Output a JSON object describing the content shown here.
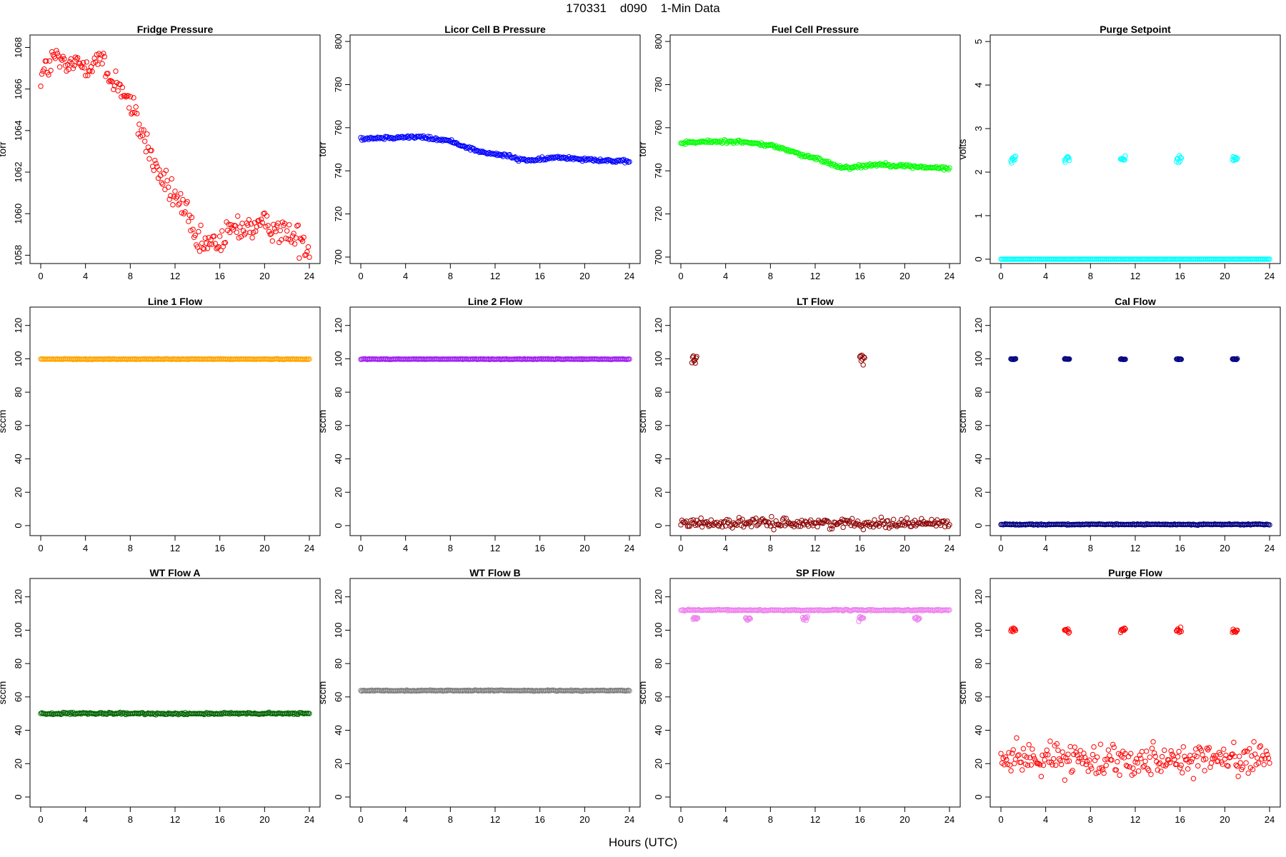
{
  "figure": {
    "title": "170331    d090    1-Min Data",
    "xlabel": "Hours (UTC)"
  },
  "chart_data": [
    {
      "type": "scatter",
      "title": "Fridge Pressure",
      "ylabel": "torr",
      "color": "#ff0000",
      "marker": "open-circle",
      "xlim": [
        0,
        24
      ],
      "xticks": [
        0,
        4,
        8,
        12,
        16,
        20,
        24
      ],
      "ylim": [
        1057.6,
        1068.6
      ],
      "yticks": [
        1058,
        1060,
        1062,
        1064,
        1066,
        1068
      ],
      "series": [
        {
          "kind": "trend",
          "noise": 0.35,
          "x": [
            0,
            0.5,
            1,
            1.5,
            2,
            3,
            4,
            5,
            5.5,
            6,
            7,
            8,
            9,
            10,
            10.5,
            11,
            12,
            13,
            13.5,
            14,
            15,
            16,
            17,
            18,
            19,
            20,
            21,
            22,
            23,
            24
          ],
          "y": [
            1066.6,
            1067.0,
            1067.3,
            1067.6,
            1067.0,
            1067.2,
            1067.2,
            1067.4,
            1067.4,
            1066.5,
            1066.3,
            1065.2,
            1064.0,
            1062.6,
            1062.0,
            1061.5,
            1060.8,
            1060.2,
            1059.0,
            1058.5,
            1058.5,
            1058.6,
            1059.2,
            1059.4,
            1059.3,
            1059.4,
            1059.4,
            1059.0,
            1058.8,
            1058.4
          ]
        }
      ]
    },
    {
      "type": "scatter",
      "title": "Licor Cell B Pressure",
      "ylabel": "torr",
      "color": "#0000ff",
      "marker": "open-circle",
      "xlim": [
        0,
        24
      ],
      "xticks": [
        0,
        4,
        8,
        12,
        16,
        20,
        24
      ],
      "ylim": [
        697,
        803
      ],
      "yticks": [
        700,
        720,
        740,
        760,
        780,
        800
      ],
      "series": [
        {
          "kind": "trend",
          "noise": 0.4,
          "x": [
            0,
            2,
            4,
            5.5,
            6,
            8,
            10,
            11,
            12,
            13,
            14,
            15,
            16,
            17,
            18,
            20,
            22,
            24
          ],
          "y": [
            755,
            755.4,
            755.7,
            755.6,
            755.2,
            753.8,
            750.0,
            748.4,
            747.6,
            747.2,
            745.4,
            745.0,
            745.0,
            746.0,
            746.2,
            745.5,
            744.8,
            744.0
          ]
        }
      ]
    },
    {
      "type": "scatter",
      "title": "Fuel Cell Pressure",
      "ylabel": "torr",
      "color": "#00ff00",
      "marker": "open-circle",
      "xlim": [
        0,
        24
      ],
      "xticks": [
        0,
        4,
        8,
        12,
        16,
        20,
        24
      ],
      "ylim": [
        697,
        803
      ],
      "yticks": [
        700,
        720,
        740,
        760,
        780,
        800
      ],
      "series": [
        {
          "kind": "trend",
          "noise": 0.4,
          "x": [
            0,
            2,
            4,
            5,
            6,
            8,
            10,
            11,
            12,
            13,
            14,
            15,
            16,
            17,
            18,
            20,
            22,
            24
          ],
          "y": [
            753.0,
            753.4,
            753.6,
            753.7,
            753.0,
            751.8,
            749.0,
            746.8,
            745.8,
            744.2,
            742.0,
            741.6,
            742.0,
            742.8,
            743.0,
            742.2,
            741.6,
            741.0
          ]
        }
      ]
    },
    {
      "type": "scatter",
      "title": "Purge Setpoint",
      "ylabel": "volts",
      "color": "#00ffff",
      "marker": "open-circle",
      "xlim": [
        0,
        24
      ],
      "xticks": [
        0,
        4,
        8,
        12,
        16,
        20,
        24
      ],
      "ylim": [
        -0.1,
        5.15
      ],
      "yticks": [
        0,
        1,
        2,
        3,
        4,
        5
      ],
      "series": [
        {
          "kind": "trend",
          "noise": 0.0,
          "x": [
            0,
            24
          ],
          "y": [
            0,
            0
          ]
        },
        {
          "kind": "bursts",
          "noise": 0.04,
          "x": [
            1.1,
            5.9,
            10.9,
            15.9,
            20.9
          ],
          "y": [
            2.3,
            2.3,
            2.3,
            2.3,
            2.3
          ]
        }
      ]
    },
    {
      "type": "scatter",
      "title": "Line 1 Flow",
      "ylabel": "sccm",
      "color": "#ffa500",
      "marker": "open-circle",
      "xlim": [
        0,
        24
      ],
      "xticks": [
        0,
        4,
        8,
        12,
        16,
        20,
        24
      ],
      "ylim": [
        -6,
        131
      ],
      "yticks": [
        0,
        20,
        40,
        60,
        80,
        100,
        120
      ],
      "series": [
        {
          "kind": "trend",
          "noise": 0.1,
          "x": [
            0,
            24
          ],
          "y": [
            99.8,
            99.8
          ]
        }
      ]
    },
    {
      "type": "scatter",
      "title": "Line 2 Flow",
      "ylabel": "sccm",
      "color": "#a020f0",
      "marker": "open-circle",
      "xlim": [
        0,
        24
      ],
      "xticks": [
        0,
        4,
        8,
        12,
        16,
        20,
        24
      ],
      "ylim": [
        -6,
        131
      ],
      "yticks": [
        0,
        20,
        40,
        60,
        80,
        100,
        120
      ],
      "series": [
        {
          "kind": "trend",
          "noise": 0.1,
          "x": [
            0,
            24
          ],
          "y": [
            99.8,
            99.8
          ]
        }
      ]
    },
    {
      "type": "scatter",
      "title": "LT Flow",
      "ylabel": "sccm",
      "color": "#8b0000",
      "marker": "open-circle",
      "xlim": [
        0,
        24
      ],
      "xticks": [
        0,
        4,
        8,
        12,
        16,
        20,
        24
      ],
      "ylim": [
        -6,
        131
      ],
      "yticks": [
        0,
        20,
        40,
        60,
        80,
        100,
        120
      ],
      "series": [
        {
          "kind": "trend",
          "noise": 1.4,
          "x": [
            0,
            24
          ],
          "y": [
            1.5,
            1.5
          ]
        },
        {
          "kind": "bursts",
          "noise": 1.6,
          "x": [
            1.2,
            16.2
          ],
          "y": [
            100,
            100
          ]
        }
      ]
    },
    {
      "type": "scatter",
      "title": "Cal Flow",
      "ylabel": "sccm",
      "color": "#000080",
      "marker": "open-circle",
      "xlim": [
        0,
        24
      ],
      "xticks": [
        0,
        4,
        8,
        12,
        16,
        20,
        24
      ],
      "ylim": [
        -6,
        131
      ],
      "yticks": [
        0,
        20,
        40,
        60,
        80,
        100,
        120
      ],
      "series": [
        {
          "kind": "trend",
          "noise": 0.15,
          "x": [
            0,
            24
          ],
          "y": [
            0.7,
            0.7
          ]
        },
        {
          "kind": "bursts",
          "noise": 0.15,
          "x": [
            1.1,
            5.9,
            10.9,
            15.9,
            20.9
          ],
          "y": [
            99.8,
            99.8,
            99.8,
            99.8,
            99.8
          ]
        }
      ]
    },
    {
      "type": "scatter",
      "title": "WT Flow A",
      "ylabel": "sccm",
      "color": "#006400",
      "marker": "open-circle",
      "xlim": [
        0,
        24
      ],
      "xticks": [
        0,
        4,
        8,
        12,
        16,
        20,
        24
      ],
      "ylim": [
        -6,
        131
      ],
      "yticks": [
        0,
        20,
        40,
        60,
        80,
        100,
        120
      ],
      "series": [
        {
          "kind": "trend",
          "noise": 0.3,
          "x": [
            0,
            24
          ],
          "y": [
            50,
            50
          ]
        }
      ]
    },
    {
      "type": "scatter",
      "title": "WT Flow B",
      "ylabel": "sccm",
      "color": "#808080",
      "marker": "open-circle",
      "xlim": [
        0,
        24
      ],
      "xticks": [
        0,
        4,
        8,
        12,
        16,
        20,
        24
      ],
      "ylim": [
        -6,
        131
      ],
      "yticks": [
        0,
        20,
        40,
        60,
        80,
        100,
        120
      ],
      "series": [
        {
          "kind": "trend",
          "noise": 0.15,
          "x": [
            0,
            24
          ],
          "y": [
            63.8,
            63.8
          ]
        }
      ]
    },
    {
      "type": "scatter",
      "title": "SP Flow",
      "ylabel": "sccm",
      "color": "#ee82ee",
      "marker": "open-circle",
      "xlim": [
        0,
        24
      ],
      "xticks": [
        0,
        4,
        8,
        12,
        16,
        20,
        24
      ],
      "ylim": [
        -6,
        131
      ],
      "yticks": [
        0,
        20,
        40,
        60,
        80,
        100,
        120
      ],
      "series": [
        {
          "kind": "trend",
          "noise": 0.2,
          "x": [
            0,
            24
          ],
          "y": [
            112,
            112
          ]
        },
        {
          "kind": "bursts",
          "noise": 0.6,
          "x": [
            1.3,
            6.0,
            11.1,
            16.1,
            21.1
          ],
          "y": [
            107,
            107,
            107,
            107,
            107
          ]
        }
      ]
    },
    {
      "type": "scatter",
      "title": "Purge Flow",
      "ylabel": "sccm",
      "color": "#ff0000",
      "marker": "open-circle",
      "xlim": [
        0,
        24
      ],
      "xticks": [
        0,
        4,
        8,
        12,
        16,
        20,
        24
      ],
      "ylim": [
        -6,
        131
      ],
      "yticks": [
        0,
        20,
        40,
        60,
        80,
        100,
        120
      ],
      "series": [
        {
          "kind": "trend",
          "noise": 4.5,
          "x": [
            0,
            24
          ],
          "y": [
            23,
            23
          ]
        },
        {
          "kind": "bursts",
          "noise": 0.7,
          "x": [
            1.1,
            5.9,
            10.9,
            15.9,
            20.9
          ],
          "y": [
            99.8,
            99.8,
            99.8,
            99.8,
            99.8
          ]
        }
      ]
    }
  ]
}
